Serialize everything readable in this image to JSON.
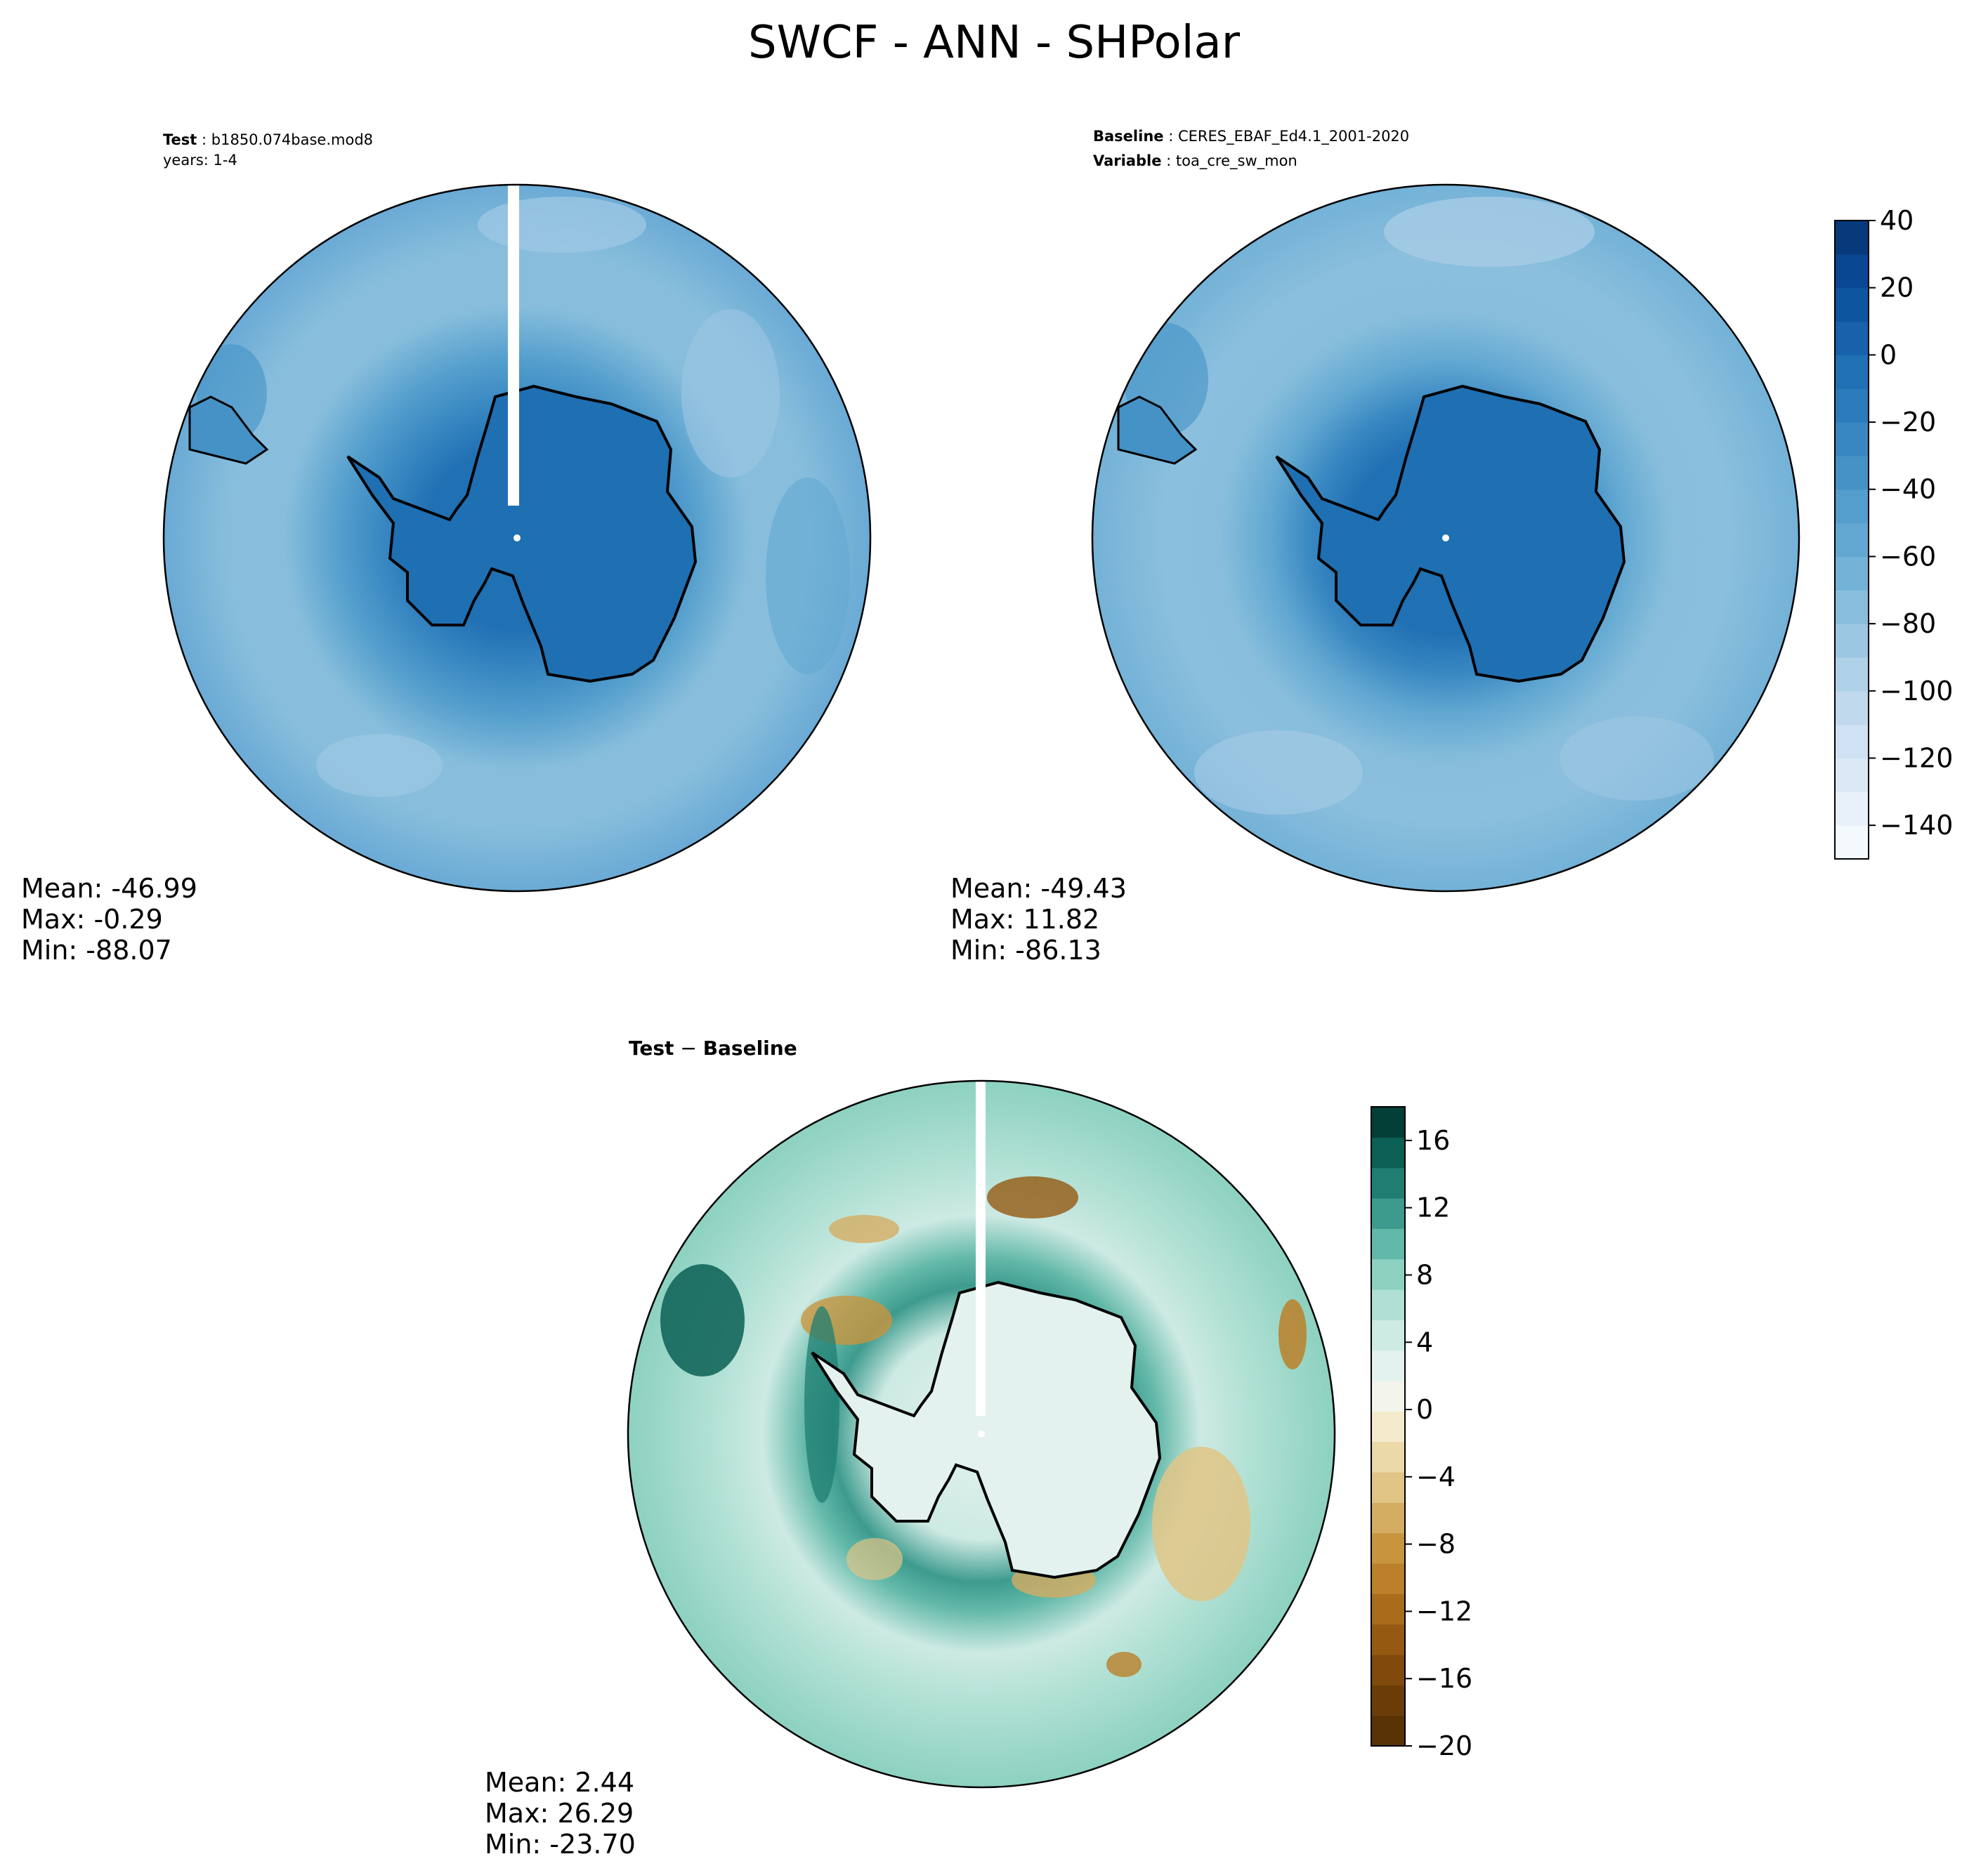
{
  "title": "SWCF - ANN - SHPolar",
  "panels": {
    "test": {
      "header": [
        {
          "label": "Test",
          "sep": " : ",
          "value": "b1850.074base.mod8"
        },
        {
          "label": "",
          "sep": "",
          "value": "years: 1-4"
        }
      ],
      "stats": {
        "mean": "Mean: -46.99",
        "max": "Max: -0.29",
        "min": "Min: -88.07"
      }
    },
    "baseline": {
      "header": [
        {
          "label": "Baseline",
          "sep": " : ",
          "value": "CERES_EBAF_Ed4.1_2001-2020"
        },
        {
          "label": "Variable",
          "sep": " : ",
          "value": "toa_cre_sw_mon"
        }
      ],
      "stats": {
        "mean": "Mean: -49.43",
        "max": "Max: 11.82",
        "min": "Min: -86.13"
      }
    },
    "diff": {
      "header_label": "Test",
      "header_op": " − ",
      "header_label2": "Baseline",
      "stats": {
        "mean": "Mean:  2.44",
        "max": "Max: 26.29",
        "min": "Min: -23.70"
      }
    }
  },
  "chart_data": [
    {
      "type": "heatmap",
      "name": "test",
      "projection": "south-polar-stereographic",
      "field": "SWCF annual mean (Test)",
      "mean": -46.99,
      "max": -0.29,
      "min": -88.07,
      "colormap": "blues",
      "approx_zones": [
        {
          "region": "antarctic-continent",
          "value": -10
        },
        {
          "region": "near-coast-ring",
          "value": -25
        },
        {
          "region": "inner-ocean-ring",
          "value": -45
        },
        {
          "region": "mid-latitude-ocean",
          "value": -65
        },
        {
          "region": "outer-ring",
          "value": -55
        }
      ]
    },
    {
      "type": "heatmap",
      "name": "baseline",
      "projection": "south-polar-stereographic",
      "field": "toa_cre_sw_mon (CERES_EBAF_Ed4.1_2001-2020)",
      "mean": -49.43,
      "max": 11.82,
      "min": -86.13,
      "colormap": "blues",
      "approx_zones": [
        {
          "region": "antarctic-continent",
          "value": -12
        },
        {
          "region": "near-coast-ring",
          "value": -30
        },
        {
          "region": "inner-ocean-ring",
          "value": -50
        },
        {
          "region": "mid-latitude-ocean",
          "value": -70
        },
        {
          "region": "outer-ring",
          "value": -58
        }
      ],
      "colorbar": {
        "vmin": -150,
        "vmax": 40,
        "levels": 19,
        "ticks": [
          40,
          20,
          0,
          -20,
          -40,
          -60,
          -80,
          -100,
          -120,
          -140
        ],
        "colors": [
          "#f4f9fe",
          "#e8f1fa",
          "#dbe9f6",
          "#cfe1f2",
          "#c1d9ed",
          "#b0d2e8",
          "#9cc7e3",
          "#88bedc",
          "#74b2d7",
          "#62a8d2",
          "#539ecd",
          "#4592c7",
          "#3887c1",
          "#2c7bba",
          "#2070b4",
          "#1762ab",
          "#0e55a0",
          "#094793",
          "#083a7b"
        ]
      }
    },
    {
      "type": "heatmap",
      "name": "test-minus-baseline",
      "projection": "south-polar-stereographic",
      "field": "Test − Baseline",
      "mean": 2.44,
      "max": 26.29,
      "min": -23.7,
      "colormap": "brown-to-teal",
      "approx_features": [
        {
          "region": "antarctic-continent",
          "value": 3
        },
        {
          "region": "circumpolar-ring",
          "value": 12
        },
        {
          "region": "coastal-peninsula",
          "value": -8
        },
        {
          "region": "pacific-sector-patch",
          "value": -12
        },
        {
          "region": "indian-sector-patch",
          "value": -6
        },
        {
          "region": "outer-ocean",
          "value": 6
        }
      ],
      "colorbar": {
        "vmin": -20,
        "vmax": 18,
        "levels": 19,
        "ticks": [
          16,
          12,
          8,
          4,
          0,
          -4,
          -8,
          -12,
          -16,
          -20
        ],
        "colors": [
          "#583305",
          "#6a3d08",
          "#7f4a0c",
          "#955912",
          "#a86c1b",
          "#bb8029",
          "#c8953f",
          "#d4ad63",
          "#e0c586",
          "#ebd9a7",
          "#f3ebcc",
          "#f3f4ec",
          "#e3f2ee",
          "#cdeae3",
          "#afe0d3",
          "#8dd1c0",
          "#63b9a9",
          "#3d9b8e",
          "#1f7d72",
          "#0b5f55",
          "#033f36"
        ]
      }
    }
  ]
}
